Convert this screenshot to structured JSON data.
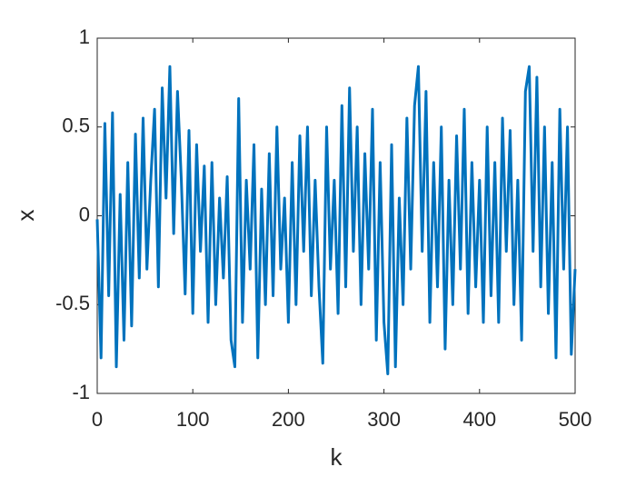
{
  "chart_data": {
    "type": "line",
    "xlabel": "k",
    "ylabel": "x",
    "x": [
      0,
      4,
      8,
      12,
      16,
      20,
      24,
      28,
      32,
      36,
      40,
      44,
      48,
      52,
      56,
      60,
      64,
      68,
      72,
      76,
      80,
      84,
      88,
      92,
      96,
      100,
      104,
      108,
      112,
      116,
      120,
      124,
      128,
      132,
      136,
      140,
      144,
      148,
      152,
      156,
      160,
      164,
      168,
      172,
      176,
      180,
      184,
      188,
      192,
      196,
      200,
      204,
      208,
      212,
      216,
      220,
      224,
      228,
      232,
      236,
      240,
      244,
      248,
      252,
      256,
      260,
      264,
      268,
      272,
      276,
      280,
      284,
      288,
      292,
      296,
      300,
      304,
      308,
      312,
      316,
      320,
      324,
      328,
      332,
      336,
      340,
      344,
      348,
      352,
      356,
      360,
      364,
      368,
      372,
      376,
      380,
      384,
      388,
      392,
      396,
      400,
      404,
      408,
      412,
      416,
      420,
      424,
      428,
      432,
      436,
      440,
      444,
      448,
      452,
      456,
      460,
      464,
      468,
      472,
      476,
      480,
      484,
      488,
      492,
      496,
      500
    ],
    "series": [
      {
        "color": "#0072bd",
        "values": [
          -0.02,
          -0.8,
          0.52,
          -0.45,
          0.58,
          -0.85,
          0.12,
          -0.7,
          0.3,
          -0.62,
          0.46,
          -0.35,
          0.55,
          -0.3,
          0.2,
          0.6,
          -0.4,
          0.72,
          0.1,
          0.84,
          -0.1,
          0.7,
          0.2,
          -0.44,
          0.48,
          -0.55,
          0.4,
          -0.2,
          0.28,
          -0.6,
          0.3,
          -0.5,
          0.1,
          -0.35,
          0.22,
          -0.7,
          -0.85,
          0.66,
          -0.6,
          0.2,
          -0.3,
          0.4,
          -0.8,
          0.15,
          -0.5,
          0.35,
          -0.45,
          0.5,
          -0.3,
          0.1,
          -0.6,
          0.3,
          -0.5,
          0.45,
          -0.2,
          0.5,
          -0.45,
          0.2,
          -0.4,
          -0.83,
          0.5,
          -0.3,
          0.2,
          -0.55,
          0.62,
          -0.4,
          0.72,
          -0.2,
          0.5,
          -0.5,
          0.35,
          -0.3,
          0.6,
          -0.7,
          0.3,
          -0.6,
          -0.89,
          0.4,
          -0.85,
          0.1,
          -0.5,
          0.55,
          -0.3,
          0.62,
          0.84,
          -0.2,
          0.7,
          -0.6,
          0.3,
          -0.4,
          0.5,
          -0.75,
          0.2,
          -0.5,
          0.45,
          -0.3,
          0.6,
          -0.55,
          0.3,
          -0.4,
          0.2,
          -0.6,
          0.5,
          -0.45,
          0.3,
          -0.6,
          0.55,
          -0.2,
          0.48,
          -0.5,
          0.2,
          -0.7,
          0.7,
          0.84,
          -0.2,
          0.78,
          -0.4,
          0.5,
          -0.55,
          0.3,
          -0.8,
          0.6,
          -0.3,
          0.5,
          -0.78,
          -0.3
        ]
      }
    ],
    "xlim": [
      0,
      500
    ],
    "xticks": [
      0,
      100,
      200,
      300,
      400,
      500
    ],
    "ylim": [
      -1,
      1
    ],
    "yticks": [
      -1,
      -0.5,
      0,
      0.5,
      1
    ]
  }
}
